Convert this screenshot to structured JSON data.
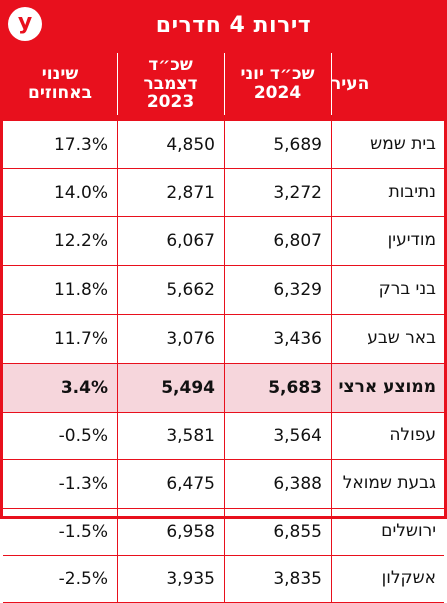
{
  "title": "דירות 4 חדרים",
  "logo_letter": "y",
  "colors": {
    "accent": "#e8101d",
    "highlight_row": "#f6d6dc"
  },
  "headers": {
    "city": "העיר",
    "june_2024": "שכ״ד יוני\n2024",
    "december_2023": "שכ״ד\nדצמבר\n2023",
    "change_percent": "שינוי\nבאחוזים"
  },
  "rows": [
    {
      "city": "בית שמש",
      "june_2024": "5,689",
      "december_2023": "4,850",
      "change": "17.3%"
    },
    {
      "city": "נתיבות",
      "june_2024": "3,272",
      "december_2023": "2,871",
      "change": "14.0%"
    },
    {
      "city": "מודיעין",
      "june_2024": "6,807",
      "december_2023": "6,067",
      "change": "12.2%"
    },
    {
      "city": "בני ברק",
      "june_2024": "6,329",
      "december_2023": "5,662",
      "change": "11.8%"
    },
    {
      "city": "באר שבע",
      "june_2024": "3,436",
      "december_2023": "3,076",
      "change": "11.7%"
    },
    {
      "city": "ממוצע ארצי",
      "june_2024": "5,683",
      "december_2023": "5,494",
      "change": "3.4%",
      "highlight": true
    },
    {
      "city": "עפולה",
      "june_2024": "3,564",
      "december_2023": "3,581",
      "change": "-0.5%"
    },
    {
      "city": "גבעת שמואל",
      "june_2024": "6,388",
      "december_2023": "6,475",
      "change": "-1.3%"
    },
    {
      "city": "ירושלים",
      "june_2024": "6,855",
      "december_2023": "6,958",
      "change": "-1.5%"
    },
    {
      "city": "אשקלון",
      "june_2024": "3,835",
      "december_2023": "3,935",
      "change": "-2.5%"
    }
  ]
}
